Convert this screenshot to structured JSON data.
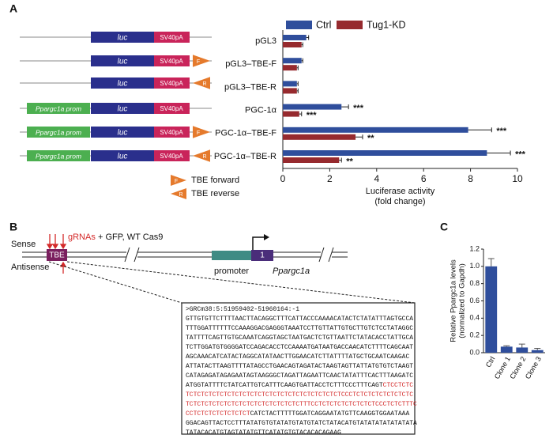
{
  "panel_labels": [
    "A",
    "B",
    "C"
  ],
  "constructs": {
    "rows": [
      {
        "luc": "luc",
        "polyA": "SV40pA"
      },
      {
        "luc": "luc",
        "polyA": "SV40pA",
        "tbe": "F"
      },
      {
        "luc": "luc",
        "polyA": "SV40pA",
        "tbe": "R"
      },
      {
        "promoter": "Ppargc1a prom",
        "luc": "luc",
        "polyA": "SV40pA"
      },
      {
        "promoter": "Ppargc1a prom",
        "luc": "luc",
        "polyA": "SV40pA",
        "tbe": "F"
      },
      {
        "promoter": "Ppargc1a prom",
        "luc": "luc",
        "polyA": "SV40pA",
        "tbe": "R"
      }
    ],
    "legend": [
      {
        "symbol": "F",
        "label": "TBE forward"
      },
      {
        "symbol": "R",
        "label": "TBE reverse"
      }
    ]
  },
  "locus": {
    "sense": "Sense",
    "antisense": "Antisense",
    "tbe": "TBE",
    "grnas": "gRNAs",
    "cas9": "+ GFP, WT Cas9",
    "promoter": "promoter",
    "exon": "1",
    "gene": "Ppargc1a",
    "sequence": {
      "header": ">GRCm38:5:51959402-51960164:-1",
      "lines": [
        [
          {
            "text": "GTTGTGTTCTTTTAACTTACAGGCTTTCATTACCCAAAACATACTCTATATTTAGTGCCA"
          }
        ],
        [
          {
            "text": "TTTGGATTTTTTCCAAAGGACGAGGGTAAATCCTTGTTATTGTGCTTGTCTCCTATAGGC"
          }
        ],
        [
          {
            "text": "TATTTTCAGTTGTGCAAATCAGGTAGCTAATGACTCTGTTAATTCTATACACCTATTGCA"
          }
        ],
        [
          {
            "text": "TCTTGGATGTGGGGATCCAGACACCTCCAAAATGATAATGACCAACATCTTTTCAGCAAT"
          }
        ],
        [
          {
            "text": "AGCAAACATCATACTAGGCATATAACTTGGAACATCTTATTTTATGCTGCAATCAAGAC"
          }
        ],
        [
          {
            "text": "ATTATACTTAAGTTTTATAGCCTGAACAGTAGATACTAAGTAGTTATTATGTGTCTAAGT"
          }
        ],
        [
          {
            "text": "CATAGAGATAGAGAATAGTAAGGGCTAGATTAGAATTCAACTATATTTCACTTTAAGATC"
          }
        ],
        [
          {
            "text": "ATGGTATTTTCTATCATTGTCATTTCAAGTGATTACCTCTTTCCCTTTCAGT"
          },
          {
            "text": "CTCCTCTC",
            "highlight": true
          }
        ],
        [
          {
            "text": "TCTCTCTCTCTCTCTCTCTCTCTCTCTCTCTCTCTCTCTCTCCCTCTCTCTCTCTCTCTC",
            "highlight": true
          }
        ],
        [
          {
            "text": "TCTCTCTCTCTCTCTCTCTCTCTCTCTCTCTTTCCTCTCTCTCTCTCTCTCCCTCTCTTTC",
            "highlight": true
          }
        ],
        [
          {
            "text": "CCTCTCTCTCTCTCTCT",
            "highlight": true
          },
          {
            "text": "CATCTACTTTTTGGATCAGGAATATGTTCAAGGTGGAATAAA"
          }
        ],
        [
          {
            "text": "GGACAGTTACTCCTTTATATGTGTATATGTATGTATCTATACATGTATATATATATATATA"
          }
        ],
        [
          {
            "text": "TATACACATGTAGTATATGTTCATATGTGTACACACAGAAG"
          }
        ]
      ]
    }
  },
  "chart_data": [
    {
      "type": "hbar",
      "categories": [
        "pGL3",
        "pGL3–TBE-F",
        "pGL3–TBE-R",
        "PGC-1α",
        "PGC-1α–TBE-F",
        "PGC-1α–TBE-R"
      ],
      "series": [
        {
          "name": "Ctrl",
          "color": "#2f4e9c",
          "values": [
            1.0,
            0.8,
            0.6,
            2.5,
            7.9,
            8.7
          ],
          "errors": [
            0.1,
            0.05,
            0.05,
            0.3,
            1.0,
            1.0
          ],
          "significance": [
            null,
            null,
            null,
            "***",
            "***",
            "***"
          ]
        },
        {
          "name": "Tug1-KD",
          "color": "#962a2e",
          "values": [
            0.8,
            0.6,
            0.6,
            0.7,
            3.1,
            2.4
          ],
          "errors": [
            0.05,
            0.05,
            0.05,
            0.1,
            0.3,
            0.1
          ],
          "significance": [
            null,
            null,
            null,
            "***",
            "**",
            "**"
          ]
        }
      ],
      "xlim": [
        0,
        10
      ],
      "xticks": [
        0,
        2,
        4,
        6,
        8,
        10
      ],
      "xlabel": [
        "Luciferase activity",
        "(fold change)"
      ],
      "legend": "top"
    },
    {
      "type": "bar",
      "categories": [
        "Ctrl",
        "Clone 1",
        "Clone 2",
        "Clone 3"
      ],
      "values": [
        1.0,
        0.07,
        0.06,
        0.03
      ],
      "errors": [
        0.09,
        0.01,
        0.04,
        0.02
      ],
      "color": "#2f4e9c",
      "ylim": [
        0,
        1.2
      ],
      "yticks": [
        {
          "value": 0,
          "label": "0.0"
        },
        0.2,
        0.4,
        0.6,
        0.8,
        {
          "value": 1,
          "label": "1.0"
        },
        1.2
      ],
      "ylabel": [
        "Relative Ppargc1a levels",
        "(normalized to Gapdh)"
      ]
    }
  ]
}
